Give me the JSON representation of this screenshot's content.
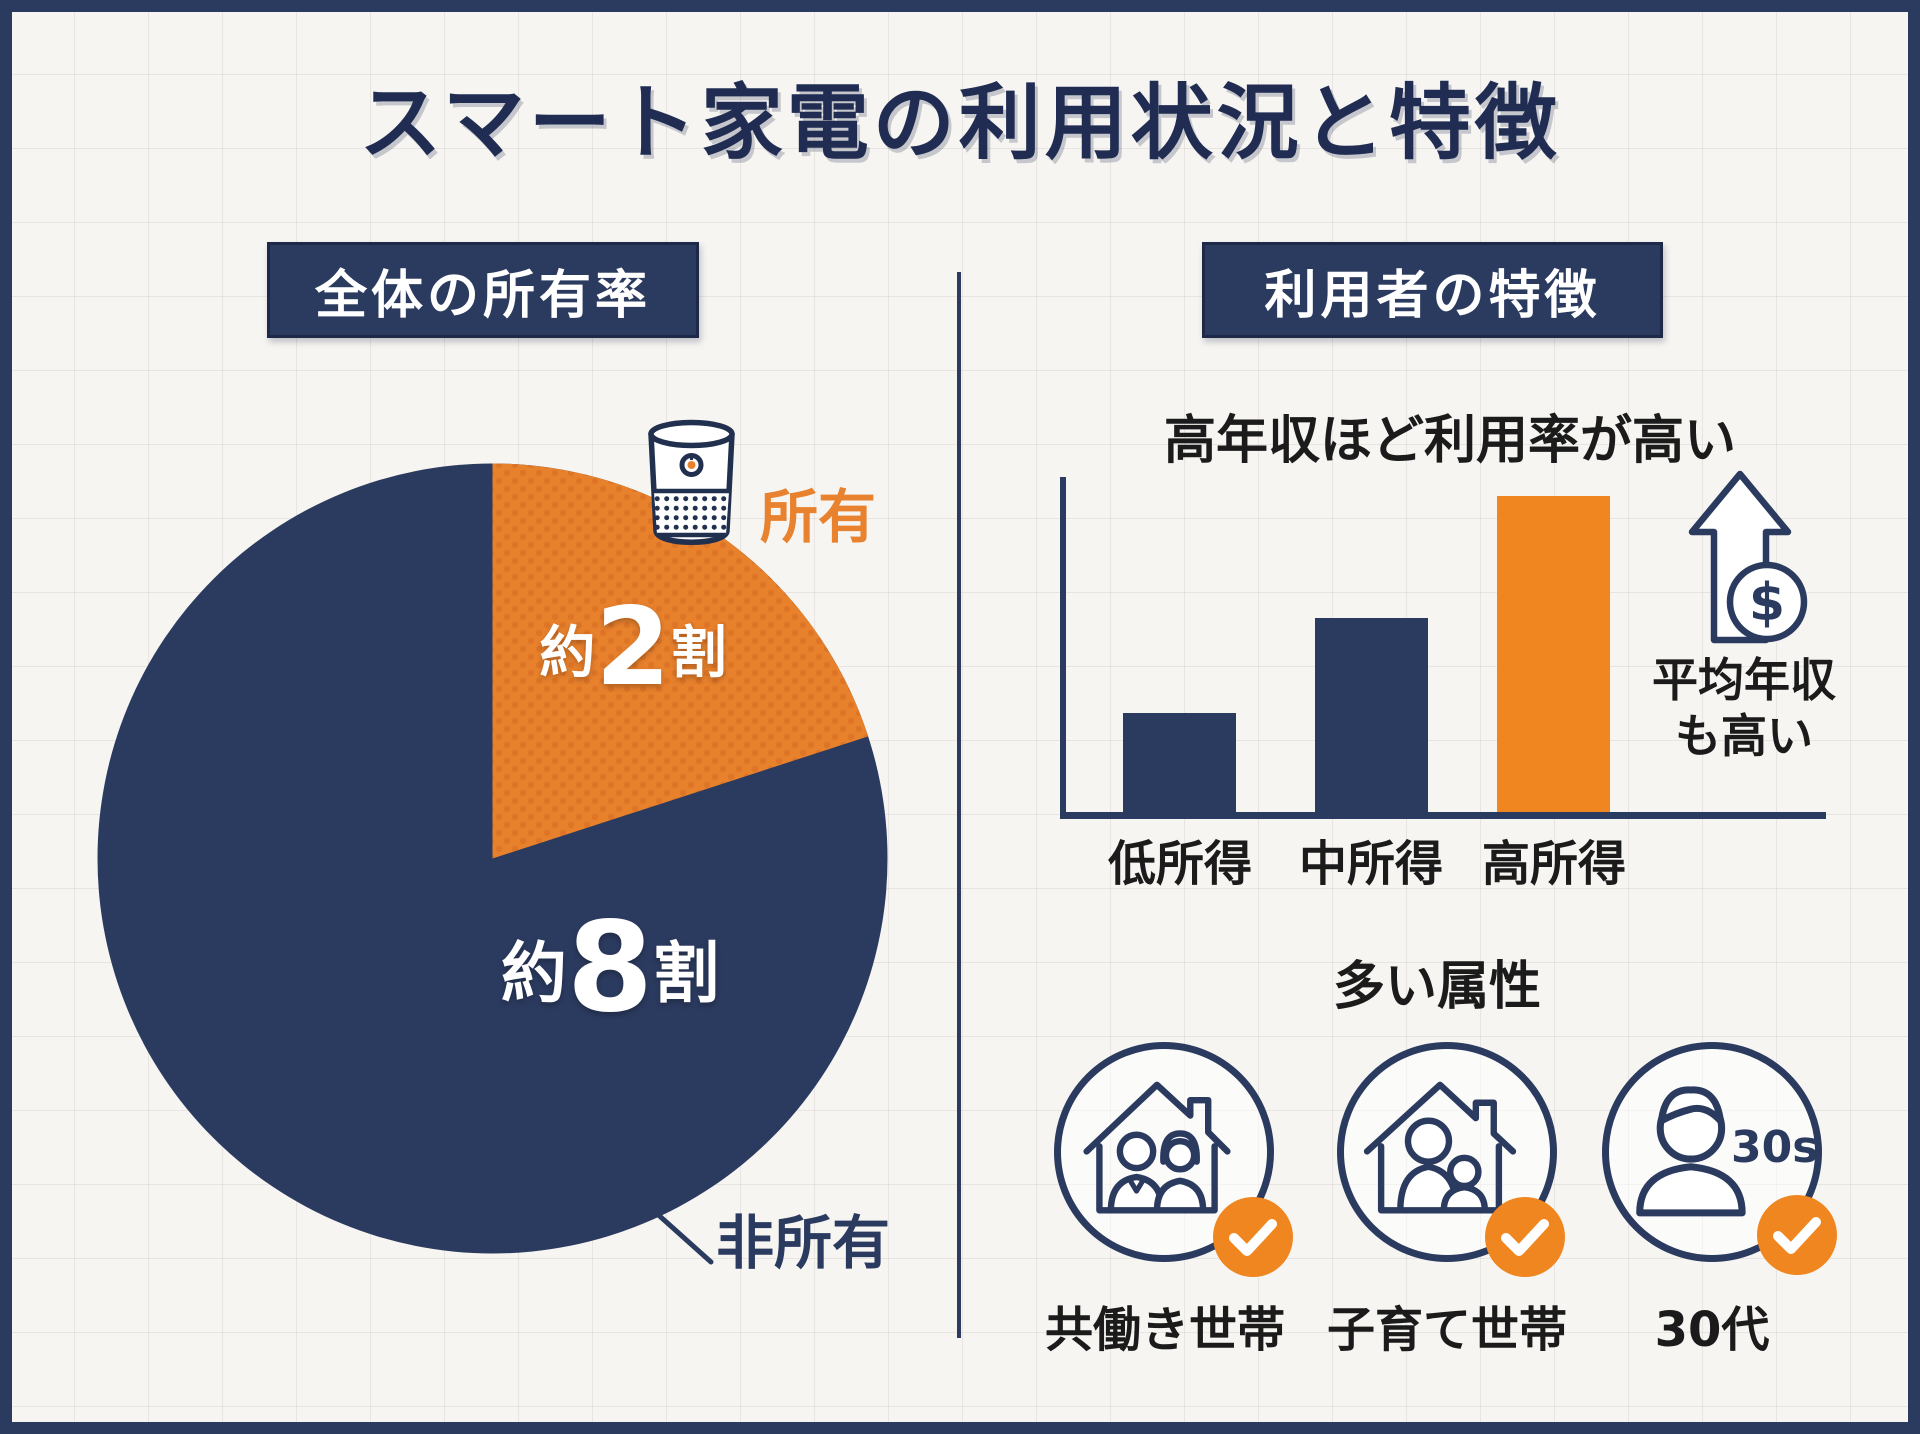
{
  "title": "スマート家電の利用状況と特徴",
  "left_panel": {
    "header": "全体の所有率",
    "pie_labels": {
      "owned": "所有",
      "not_owned": "非所有",
      "owned_approx": "約",
      "owned_num": "2",
      "owned_unit": "割",
      "not_owned_approx": "約",
      "not_owned_num": "8",
      "not_owned_unit": "割"
    },
    "speaker_icon": "smart-speaker-icon"
  },
  "right_panel": {
    "header": "利用者の特徴",
    "bar_section": {
      "title": "高年収ほど利用率が高い",
      "labels": [
        "低所得",
        "中所得",
        "高所得"
      ],
      "note_line1": "平均年収",
      "note_line2": "も高い",
      "dollar_symbol": "$",
      "arrow_icon": "up-arrow-icon",
      "dollar_icon": "dollar-coin-icon"
    },
    "attr_section": {
      "title": "多い属性",
      "items": [
        {
          "label": "共働き世帯",
          "icon": "dual-income-household-icon"
        },
        {
          "label": "子育て世帯",
          "icon": "child-rearing-household-icon"
        },
        {
          "label": "30代",
          "icon": "thirties-person-icon",
          "inner_text": "30s"
        }
      ],
      "check_icon": "check-icon"
    }
  },
  "colors": {
    "navy": "#2b3a5f",
    "navy_text": "#202c52",
    "orange_slice": "#e8812c",
    "orange_slice_dots": "#dd7426",
    "orange_bright": "#f0861f",
    "orange_label": "#e8822e",
    "black_text": "#1b1b1b",
    "background": "#f7f5f2",
    "white": "#ffffff"
  },
  "chart_data": [
    {
      "type": "pie",
      "title": "全体の所有率",
      "labels": [
        "所有",
        "非所有"
      ],
      "values": [
        20,
        80
      ],
      "display_values": [
        "約2割",
        "約8割"
      ],
      "colors": [
        "#e8812c",
        "#2b3a5f"
      ],
      "start_angle_deg": 0,
      "direction": "clockwise",
      "note": "values are approximate (約2割 / 約8割)"
    },
    {
      "type": "bar",
      "title": "高年収ほど利用率が高い",
      "categories": [
        "低所得",
        "中所得",
        "高所得"
      ],
      "values": [
        29,
        57,
        93
      ],
      "ylim": [
        0,
        100
      ],
      "colors": [
        "#2b3a5f",
        "#2b3a5f",
        "#f0861f"
      ],
      "ylabel": "",
      "xlabel": "",
      "grid": false,
      "annotation": "平均年収も高い",
      "note": "no numeric axis shown; values estimated from bar heights"
    }
  ]
}
